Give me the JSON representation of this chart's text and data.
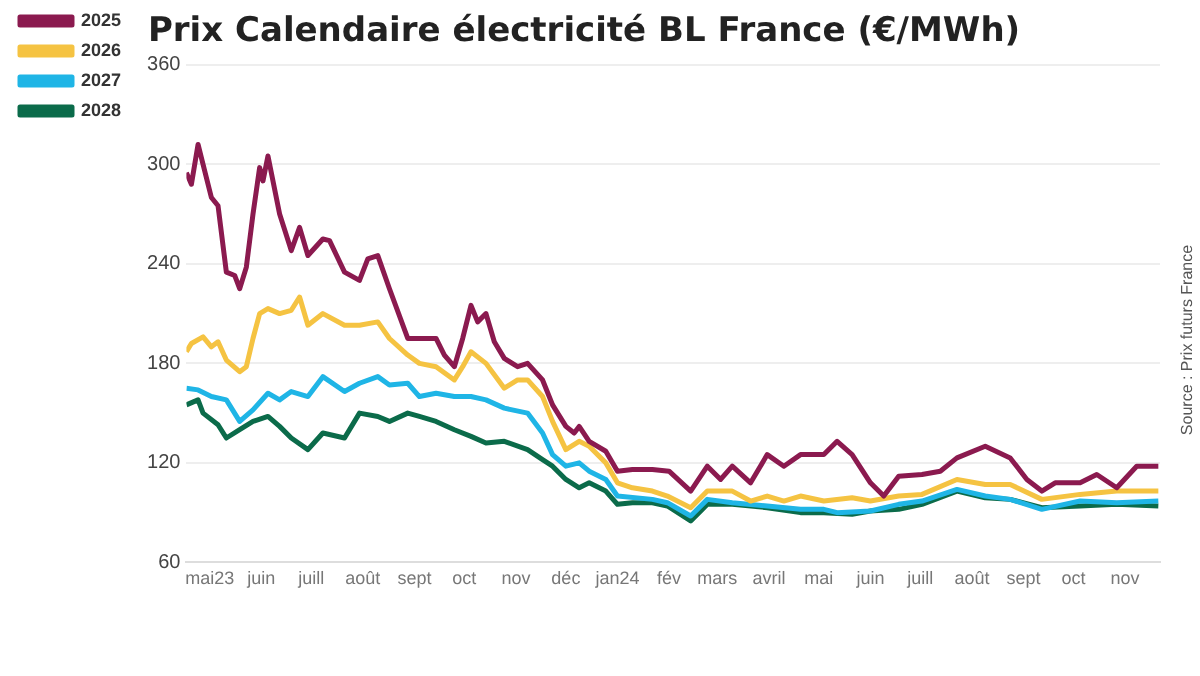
{
  "chart_data": {
    "type": "line",
    "title": "Prix Calendaire électricité BL France (€/MWh)",
    "annotations": [
      "Source : Prix futurs France"
    ],
    "grid": "y",
    "legend": "top left",
    "marker": "none",
    "line_style": "solid",
    "xlim": [
      "2023-04-17",
      "2024-11-22"
    ],
    "ylim": [
      60,
      360
    ],
    "yticks": [
      60,
      120,
      180,
      240,
      300,
      360
    ],
    "xticks": [
      {
        "value": "2023-05-01",
        "label": "mai23"
      },
      {
        "value": "2023-06-01",
        "label": "juin"
      },
      {
        "value": "2023-07-01",
        "label": "juill"
      },
      {
        "value": "2023-08-01",
        "label": "août"
      },
      {
        "value": "2023-09-01",
        "label": "sept"
      },
      {
        "value": "2023-10-01",
        "label": "oct"
      },
      {
        "value": "2023-11-01",
        "label": "nov"
      },
      {
        "value": "2023-12-01",
        "label": "déc"
      },
      {
        "value": "2024-01-01",
        "label": "jan24"
      },
      {
        "value": "2024-02-01",
        "label": "fév"
      },
      {
        "value": "2024-03-01",
        "label": "mars"
      },
      {
        "value": "2024-04-01",
        "label": "avril"
      },
      {
        "value": "2024-05-01",
        "label": "mai"
      },
      {
        "value": "2024-06-01",
        "label": "juin"
      },
      {
        "value": "2024-07-01",
        "label": "juill"
      },
      {
        "value": "2024-08-01",
        "label": "août"
      },
      {
        "value": "2024-09-01",
        "label": "sept"
      },
      {
        "value": "2024-10-01",
        "label": "oct"
      },
      {
        "value": "2024-11-01",
        "label": "nov"
      }
    ],
    "series": [
      {
        "name": "2025",
        "color": "#8b1a4f",
        "x": [
          "2023-04-17",
          "2023-04-20",
          "2023-04-24",
          "2023-04-27",
          "2023-05-02",
          "2023-05-06",
          "2023-05-11",
          "2023-05-16",
          "2023-05-19",
          "2023-05-23",
          "2023-05-27",
          "2023-05-31",
          "2023-06-02",
          "2023-06-05",
          "2023-06-12",
          "2023-06-19",
          "2023-06-24",
          "2023-06-29",
          "2023-07-08",
          "2023-07-12",
          "2023-07-21",
          "2023-07-30",
          "2023-08-04",
          "2023-08-10",
          "2023-08-17",
          "2023-08-28",
          "2023-09-04",
          "2023-09-14",
          "2023-09-19",
          "2023-09-25",
          "2023-09-30",
          "2023-10-05",
          "2023-10-09",
          "2023-10-14",
          "2023-10-19",
          "2023-10-25",
          "2023-11-02",
          "2023-11-08",
          "2023-11-17",
          "2023-11-23",
          "2023-12-01",
          "2023-12-06",
          "2023-12-09",
          "2023-12-15",
          "2023-12-25",
          "2024-01-01",
          "2024-01-10",
          "2024-01-22",
          "2024-02-01",
          "2024-02-14",
          "2024-02-24",
          "2024-03-03",
          "2024-03-10",
          "2024-03-21",
          "2024-03-31",
          "2024-04-10",
          "2024-04-20",
          "2024-05-04",
          "2024-05-12",
          "2024-05-21",
          "2024-06-01",
          "2024-06-09",
          "2024-06-18",
          "2024-07-02",
          "2024-07-13",
          "2024-07-23",
          "2024-08-09",
          "2024-08-24",
          "2024-09-03",
          "2024-09-12",
          "2024-09-20",
          "2024-10-05",
          "2024-10-15",
          "2024-10-27",
          "2024-11-08",
          "2024-11-21"
        ],
        "values": [
          295,
          288,
          312,
          300,
          280,
          275,
          235,
          233,
          225,
          238,
          270,
          298,
          290,
          305,
          270,
          248,
          262,
          245,
          255,
          254,
          235,
          230,
          243,
          245,
          225,
          195,
          195,
          195,
          185,
          178,
          195,
          215,
          205,
          210,
          193,
          183,
          178,
          180,
          170,
          155,
          142,
          138,
          142,
          133,
          127,
          115,
          116,
          116,
          115,
          103,
          118,
          110,
          118,
          108,
          125,
          118,
          125,
          125,
          133,
          125,
          108,
          100,
          112,
          113,
          115,
          123,
          130,
          123,
          110,
          103,
          108,
          108,
          113,
          105,
          118,
          118
        ]
      },
      {
        "name": "2026",
        "color": "#f5c342",
        "x": [
          "2023-04-17",
          "2023-04-20",
          "2023-04-27",
          "2023-05-02",
          "2023-05-06",
          "2023-05-11",
          "2023-05-19",
          "2023-05-23",
          "2023-05-27",
          "2023-05-31",
          "2023-06-05",
          "2023-06-12",
          "2023-06-19",
          "2023-06-24",
          "2023-06-29",
          "2023-07-08",
          "2023-07-21",
          "2023-07-30",
          "2023-08-10",
          "2023-08-17",
          "2023-08-28",
          "2023-09-04",
          "2023-09-14",
          "2023-09-25",
          "2023-09-30",
          "2023-10-05",
          "2023-10-14",
          "2023-10-25",
          "2023-11-02",
          "2023-11-08",
          "2023-11-17",
          "2023-11-23",
          "2023-12-01",
          "2023-12-09",
          "2023-12-15",
          "2023-12-25",
          "2024-01-01",
          "2024-01-10",
          "2024-01-22",
          "2024-01-31",
          "2024-02-14",
          "2024-02-24",
          "2024-03-10",
          "2024-03-21",
          "2024-03-31",
          "2024-04-10",
          "2024-04-20",
          "2024-05-04",
          "2024-05-21",
          "2024-06-01",
          "2024-06-18",
          "2024-07-02",
          "2024-07-23",
          "2024-08-09",
          "2024-08-24",
          "2024-09-12",
          "2024-10-05",
          "2024-10-27",
          "2024-11-21"
        ],
        "values": [
          187,
          192,
          196,
          190,
          193,
          182,
          175,
          178,
          195,
          210,
          213,
          210,
          212,
          220,
          203,
          210,
          203,
          203,
          205,
          195,
          185,
          180,
          178,
          170,
          178,
          187,
          180,
          165,
          170,
          170,
          160,
          145,
          128,
          133,
          130,
          120,
          108,
          105,
          103,
          100,
          93,
          103,
          103,
          97,
          100,
          97,
          100,
          97,
          99,
          97,
          100,
          101,
          110,
          107,
          107,
          98,
          101,
          103,
          103
        ]
      },
      {
        "name": "2027",
        "color": "#1fb5e6",
        "x": [
          "2023-04-17",
          "2023-04-24",
          "2023-05-02",
          "2023-05-11",
          "2023-05-19",
          "2023-05-27",
          "2023-06-05",
          "2023-06-12",
          "2023-06-19",
          "2023-06-29",
          "2023-07-08",
          "2023-07-21",
          "2023-07-30",
          "2023-08-10",
          "2023-08-17",
          "2023-08-28",
          "2023-09-04",
          "2023-09-14",
          "2023-09-25",
          "2023-10-05",
          "2023-10-14",
          "2023-10-25",
          "2023-11-08",
          "2023-11-17",
          "2023-11-23",
          "2023-12-01",
          "2023-12-09",
          "2023-12-15",
          "2023-12-25",
          "2024-01-01",
          "2024-01-22",
          "2024-01-31",
          "2024-02-14",
          "2024-02-24",
          "2024-03-10",
          "2024-03-31",
          "2024-04-20",
          "2024-05-04",
          "2024-05-12",
          "2024-06-01",
          "2024-06-18",
          "2024-07-02",
          "2024-07-23",
          "2024-08-09",
          "2024-08-24",
          "2024-09-12",
          "2024-10-05",
          "2024-10-27",
          "2024-11-21"
        ],
        "values": [
          165,
          164,
          160,
          158,
          145,
          152,
          162,
          158,
          163,
          160,
          172,
          163,
          168,
          172,
          167,
          168,
          160,
          162,
          160,
          160,
          158,
          153,
          150,
          138,
          125,
          118,
          120,
          115,
          110,
          100,
          98,
          96,
          88,
          98,
          96,
          94,
          92,
          92,
          90,
          91,
          95,
          97,
          104,
          100,
          98,
          92,
          97,
          96,
          97
        ]
      },
      {
        "name": "2028",
        "color": "#0b6b4a",
        "x": [
          "2023-04-17",
          "2023-04-24",
          "2023-04-27",
          "2023-05-06",
          "2023-05-11",
          "2023-05-19",
          "2023-05-27",
          "2023-06-05",
          "2023-06-12",
          "2023-06-19",
          "2023-06-29",
          "2023-07-08",
          "2023-07-21",
          "2023-07-30",
          "2023-08-10",
          "2023-08-17",
          "2023-08-28",
          "2023-09-04",
          "2023-09-14",
          "2023-09-25",
          "2023-10-05",
          "2023-10-14",
          "2023-10-25",
          "2023-11-08",
          "2023-11-17",
          "2023-11-23",
          "2023-12-01",
          "2023-12-09",
          "2023-12-15",
          "2023-12-25",
          "2024-01-01",
          "2024-01-10",
          "2024-01-22",
          "2024-01-31",
          "2024-02-14",
          "2024-02-24",
          "2024-03-10",
          "2024-03-31",
          "2024-04-20",
          "2024-05-04",
          "2024-05-21",
          "2024-06-01",
          "2024-06-18",
          "2024-07-02",
          "2024-07-23",
          "2024-08-09",
          "2024-08-24",
          "2024-09-12",
          "2024-10-05",
          "2024-10-27",
          "2024-11-21"
        ],
        "values": [
          155,
          158,
          150,
          143,
          135,
          140,
          145,
          148,
          142,
          135,
          128,
          138,
          135,
          150,
          148,
          145,
          150,
          148,
          145,
          140,
          136,
          132,
          133,
          128,
          122,
          118,
          110,
          105,
          108,
          103,
          95,
          96,
          96,
          94,
          85,
          95,
          95,
          93,
          90,
          90,
          89,
          91,
          92,
          95,
          103,
          99,
          98,
          93,
          94,
          95,
          94
        ]
      }
    ]
  }
}
